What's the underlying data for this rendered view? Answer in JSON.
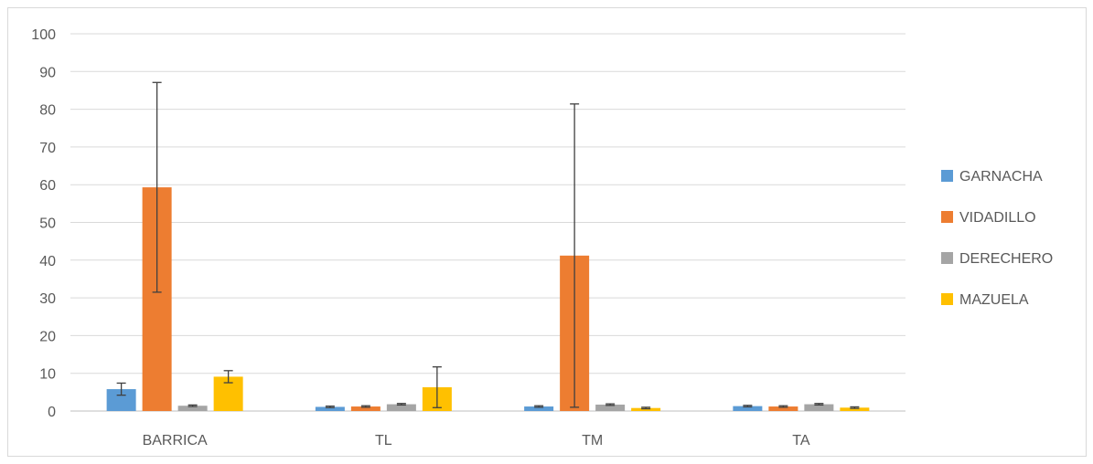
{
  "chart_data": {
    "type": "bar",
    "title": "",
    "xlabel": "",
    "ylabel": "",
    "ylim": [
      0,
      100
    ],
    "yticks": [
      0,
      10,
      20,
      30,
      40,
      50,
      60,
      70,
      80,
      90,
      100
    ],
    "grid": true,
    "legend_position": "right",
    "categories": [
      "BARRICA",
      "TL",
      "TM",
      "TA"
    ],
    "series": [
      {
        "name": "GARNACHA",
        "color": "#5b9bd5",
        "values": [
          5.8,
          1.1,
          1.2,
          1.3
        ],
        "error": [
          1.6,
          0.2,
          0.2,
          0.2
        ]
      },
      {
        "name": "VIDADILLO",
        "color": "#ed7d31",
        "values": [
          59.3,
          1.2,
          41.2,
          1.2
        ],
        "error": [
          27.8,
          0.2,
          40.2,
          0.2
        ]
      },
      {
        "name": "DERECHERO",
        "color": "#a5a5a5",
        "values": [
          1.4,
          1.8,
          1.7,
          1.8
        ],
        "error": [
          0.2,
          0.2,
          0.2,
          0.2
        ]
      },
      {
        "name": "MAZUELA",
        "color": "#ffc000",
        "values": [
          9.1,
          6.3,
          0.8,
          0.9
        ],
        "error": [
          1.6,
          5.4,
          0.2,
          0.2
        ]
      }
    ]
  }
}
